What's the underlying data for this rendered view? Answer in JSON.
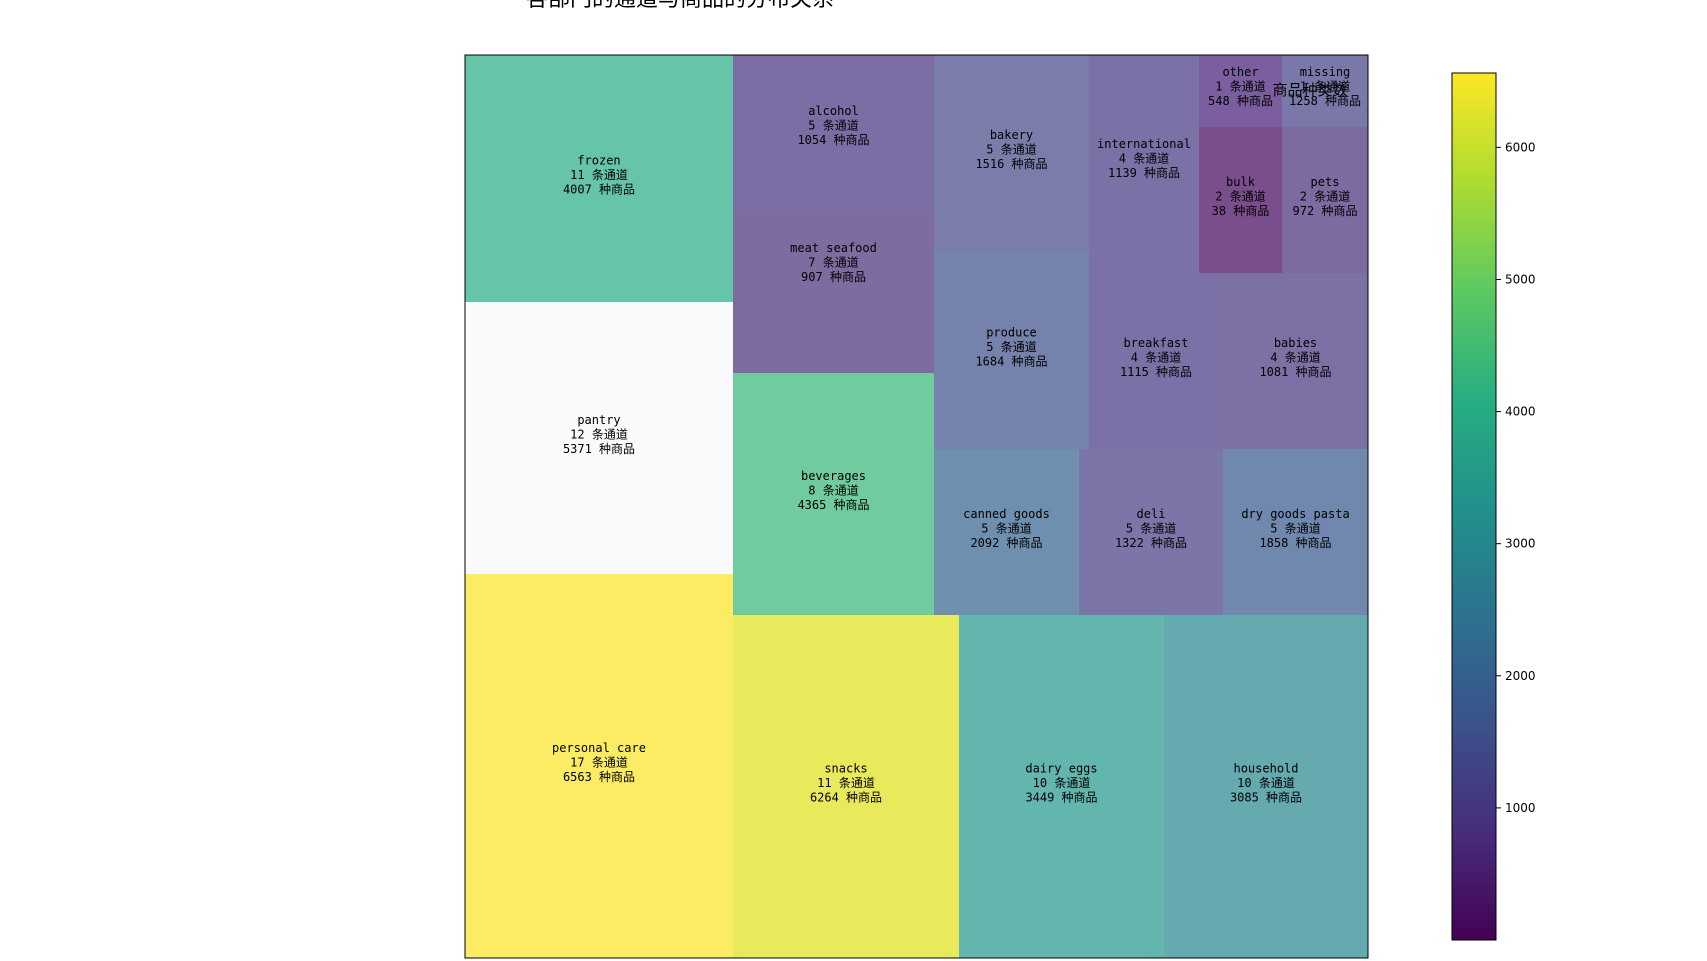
{
  "chart_data": {
    "type": "treemap",
    "title": "各部门的通道与商品的分布关系",
    "value_unit_aisles": "条通道",
    "value_unit_products": "种商品",
    "colorbar": {
      "label": "商品种类数",
      "range": [
        0,
        6563
      ],
      "ticks": [
        1000,
        2000,
        3000,
        4000,
        5000,
        6000
      ],
      "colormap": "viridis"
    },
    "items": [
      {
        "department": "personal care",
        "aisles": 17,
        "products": 6563,
        "color": "#fcec64"
      },
      {
        "department": "pantry",
        "aisles": 12,
        "products": 5371,
        "color": "#fafafc"
      },
      {
        "department": "frozen",
        "aisles": 11,
        "products": 4007,
        "color": "#66c4a9"
      },
      {
        "department": "snacks",
        "aisles": 11,
        "products": 6264,
        "color": "#e8ea5c"
      },
      {
        "department": "beverages",
        "aisles": 8,
        "products": 4365,
        "color": "#70cc9f"
      },
      {
        "department": "meat seafood",
        "aisles": 7,
        "products": 907,
        "color": "#7e6ba0"
      },
      {
        "department": "alcohol",
        "aisles": 5,
        "products": 1054,
        "color": "#7c6ea4"
      },
      {
        "department": "dairy eggs",
        "aisles": 10,
        "products": 3449,
        "color": "#63b6ae"
      },
      {
        "department": "household",
        "aisles": 10,
        "products": 3085,
        "color": "#64aaae"
      },
      {
        "department": "canned goods",
        "aisles": 5,
        "products": 2092,
        "color": "#6e90ae"
      },
      {
        "department": "deli",
        "aisles": 5,
        "products": 1322,
        "color": "#7c76a8"
      },
      {
        "department": "dry goods pasta",
        "aisles": 5,
        "products": 1858,
        "color": "#7088ae"
      },
      {
        "department": "bakery",
        "aisles": 5,
        "products": 1516,
        "color": "#7a7daa"
      },
      {
        "department": "produce",
        "aisles": 5,
        "products": 1684,
        "color": "#7482ac"
      },
      {
        "department": "international",
        "aisles": 4,
        "products": 1139,
        "color": "#7c71a6"
      },
      {
        "department": "breakfast",
        "aisles": 4,
        "products": 1115,
        "color": "#7c71a6"
      },
      {
        "department": "babies",
        "aisles": 4,
        "products": 1081,
        "color": "#7c70a4"
      },
      {
        "department": "other",
        "aisles": 1,
        "products": 548,
        "color": "#7a5e9e"
      },
      {
        "department": "missing",
        "aisles": 1,
        "products": 1258,
        "color": "#7a78a8"
      },
      {
        "department": "bulk",
        "aisles": 2,
        "products": 38,
        "color": "#7a4e8c"
      },
      {
        "department": "pets",
        "aisles": 2,
        "products": 972,
        "color": "#7c6aa0"
      }
    ]
  }
}
